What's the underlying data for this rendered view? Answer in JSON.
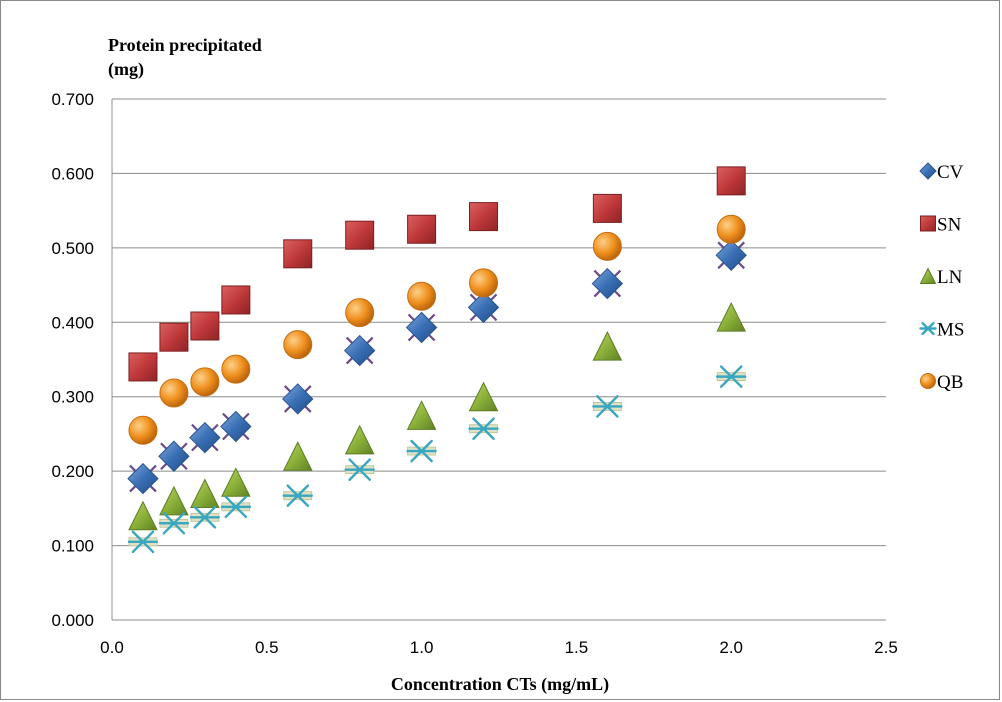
{
  "chart_data": {
    "type": "scatter",
    "ylabel_line1": "Protein precipitated",
    "ylabel_line2": "(mg)",
    "xlabel": "Concentration CTs (mg/mL)",
    "xlim": [
      0,
      2.5
    ],
    "ylim": [
      0,
      0.7
    ],
    "x_ticks": [
      0,
      0.5,
      1.0,
      1.5,
      2.0,
      2.5
    ],
    "x_tick_labels": [
      "0.0",
      "0.5",
      "1.0",
      "1.5",
      "2.0",
      "2.5"
    ],
    "y_ticks": [
      0,
      0.1,
      0.2,
      0.3,
      0.4,
      0.5,
      0.6,
      0.7
    ],
    "y_tick_labels": [
      "0.000",
      "0.100",
      "0.200",
      "0.300",
      "0.400",
      "0.500",
      "0.600",
      "0.700"
    ],
    "grid": "horizontal",
    "legend_position": "right",
    "x": [
      0.1,
      0.2,
      0.3,
      0.4,
      0.6,
      0.8,
      1.0,
      1.2,
      1.6,
      2.0
    ],
    "series": [
      {
        "name": "CV",
        "marker": "diamond",
        "color": "#3a6fb5",
        "values": [
          0.19,
          0.22,
          0.245,
          0.26,
          0.297,
          0.362,
          0.393,
          0.42,
          0.452,
          0.49
        ]
      },
      {
        "name": "SN",
        "marker": "square",
        "color": "#c0393b",
        "values": [
          0.34,
          0.38,
          0.395,
          0.43,
          0.492,
          0.517,
          0.525,
          0.542,
          0.553,
          0.59
        ]
      },
      {
        "name": "LN",
        "marker": "triangle",
        "color": "#8db23a",
        "values": [
          0.14,
          0.16,
          0.17,
          0.185,
          0.22,
          0.242,
          0.275,
          0.3,
          0.368,
          0.407
        ]
      },
      {
        "name": "MS",
        "marker": "asterisk",
        "color": "#3aa6c0",
        "values": [
          0.105,
          0.13,
          0.138,
          0.152,
          0.167,
          0.202,
          0.227,
          0.257,
          0.287,
          0.327
        ]
      },
      {
        "name": "QB",
        "marker": "circle",
        "color": "#ee8a1d",
        "values": [
          0.255,
          0.305,
          0.32,
          0.337,
          0.37,
          0.413,
          0.435,
          0.453,
          0.502,
          0.525
        ]
      }
    ]
  }
}
